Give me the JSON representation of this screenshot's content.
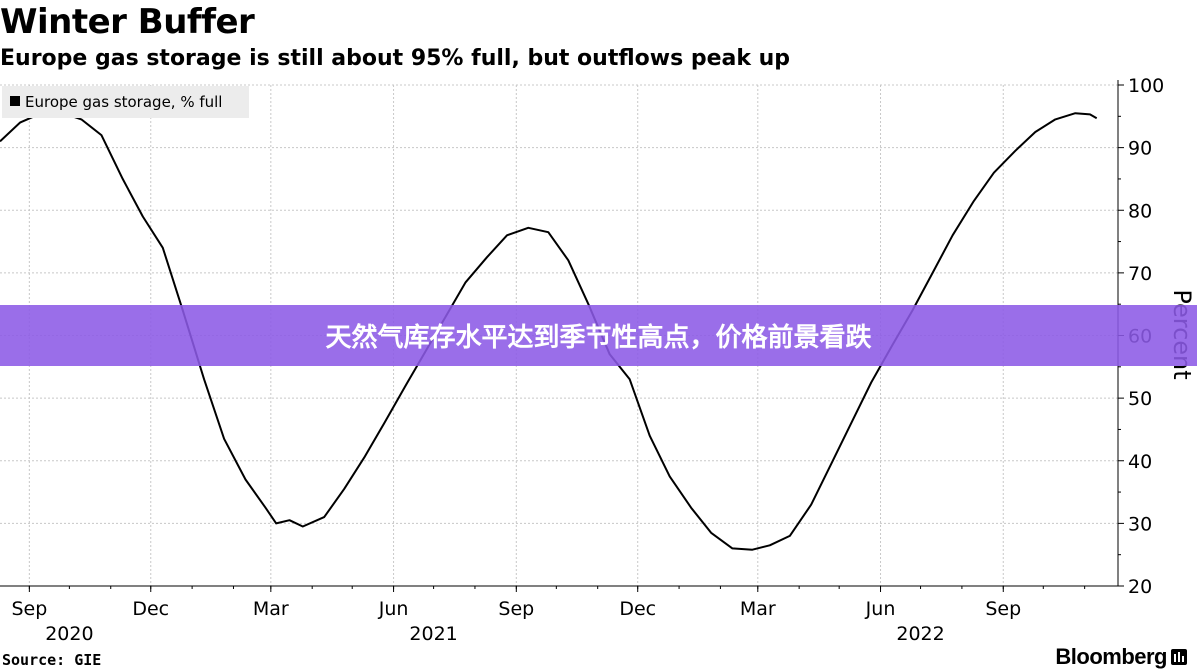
{
  "header": {
    "title": "Winter Buffer",
    "subtitle": "Europe gas storage is still about 95% full, but outflows peak up"
  },
  "banner": {
    "text": "天然气库存水平达到季节性高点，价格前景看跌"
  },
  "footer": {
    "source": "Source: GIE",
    "brand": "Bloomberg",
    "brand_icon": "bloomberg-terminal-icon"
  },
  "chart_data": {
    "type": "line",
    "title": "Winter Buffer",
    "subtitle": "Europe gas storage is still about 95% full, but outflows peak up",
    "ylabel": "Percent",
    "xlabel": "",
    "ylim": [
      20,
      100
    ],
    "yticks": [
      20,
      30,
      40,
      50,
      60,
      70,
      80,
      90,
      100
    ],
    "xlim": [
      "2020-08-10",
      "2022-11-26"
    ],
    "xtick_labels": [
      {
        "label": "Sep",
        "date": "2020-09-01"
      },
      {
        "label": "Dec",
        "date": "2020-12-01"
      },
      {
        "label": "Mar",
        "date": "2021-03-01"
      },
      {
        "label": "Jun",
        "date": "2021-06-01"
      },
      {
        "label": "Sep",
        "date": "2021-09-01"
      },
      {
        "label": "Dec",
        "date": "2021-12-01"
      },
      {
        "label": "Mar",
        "date": "2022-03-01"
      },
      {
        "label": "Jun",
        "date": "2022-06-01"
      },
      {
        "label": "Sep",
        "date": "2022-09-01"
      }
    ],
    "year_labels": [
      {
        "label": "2020",
        "date": "2020-10-01"
      },
      {
        "label": "2021",
        "date": "2021-07-01"
      },
      {
        "label": "2022",
        "date": "2022-07-01"
      }
    ],
    "grid": true,
    "legend": {
      "position": "top-left",
      "entries": [
        "Europe gas storage, % full"
      ]
    },
    "series": [
      {
        "name": "Europe gas storage, % full",
        "color": "#000000",
        "points": [
          [
            "2020-08-10",
            91.0
          ],
          [
            "2020-08-25",
            94.0
          ],
          [
            "2020-09-10",
            95.5
          ],
          [
            "2020-09-25",
            95.6
          ],
          [
            "2020-10-10",
            94.5
          ],
          [
            "2020-10-25",
            92.0
          ],
          [
            "2020-11-10",
            85.0
          ],
          [
            "2020-11-25",
            79.0
          ],
          [
            "2020-12-10",
            74.0
          ],
          [
            "2020-12-25",
            64.0
          ],
          [
            "2021-01-10",
            53.0
          ],
          [
            "2021-01-25",
            43.5
          ],
          [
            "2021-02-10",
            37.0
          ],
          [
            "2021-02-25",
            32.5
          ],
          [
            "2021-03-05",
            30.0
          ],
          [
            "2021-03-15",
            30.5
          ],
          [
            "2021-03-25",
            29.5
          ],
          [
            "2021-04-10",
            31.0
          ],
          [
            "2021-04-25",
            35.5
          ],
          [
            "2021-05-10",
            40.5
          ],
          [
            "2021-05-25",
            46.0
          ],
          [
            "2021-06-10",
            52.0
          ],
          [
            "2021-06-25",
            57.5
          ],
          [
            "2021-07-10",
            63.0
          ],
          [
            "2021-07-25",
            68.5
          ],
          [
            "2021-08-10",
            72.5
          ],
          [
            "2021-08-25",
            76.0
          ],
          [
            "2021-09-10",
            77.2
          ],
          [
            "2021-09-25",
            76.5
          ],
          [
            "2021-10-10",
            72.0
          ],
          [
            "2021-10-25",
            65.0
          ],
          [
            "2021-11-10",
            57.0
          ],
          [
            "2021-11-25",
            53.0
          ],
          [
            "2021-12-10",
            44.0
          ],
          [
            "2021-12-25",
            37.5
          ],
          [
            "2022-01-10",
            32.5
          ],
          [
            "2022-01-25",
            28.5
          ],
          [
            "2022-02-10",
            26.0
          ],
          [
            "2022-02-25",
            25.8
          ],
          [
            "2022-03-10",
            26.5
          ],
          [
            "2022-03-25",
            28.0
          ],
          [
            "2022-04-10",
            33.0
          ],
          [
            "2022-04-25",
            39.5
          ],
          [
            "2022-05-10",
            46.0
          ],
          [
            "2022-05-25",
            52.5
          ],
          [
            "2022-06-10",
            58.5
          ],
          [
            "2022-06-25",
            64.0
          ],
          [
            "2022-07-10",
            70.0
          ],
          [
            "2022-07-25",
            76.0
          ],
          [
            "2022-08-10",
            81.5
          ],
          [
            "2022-08-25",
            86.0
          ],
          [
            "2022-09-10",
            89.5
          ],
          [
            "2022-09-25",
            92.5
          ],
          [
            "2022-10-10",
            94.5
          ],
          [
            "2022-10-25",
            95.5
          ],
          [
            "2022-11-05",
            95.3
          ],
          [
            "2022-11-10",
            94.7
          ]
        ]
      }
    ]
  }
}
